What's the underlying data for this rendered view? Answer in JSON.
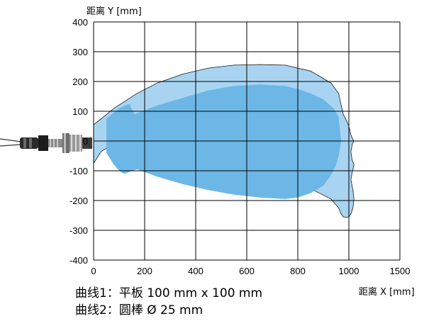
{
  "chart_data": {
    "type": "area",
    "title": "",
    "ylabel": "距离 Y [mm]",
    "xlabel": "距离 X [mm]",
    "x_ticks": [
      "0",
      "200",
      "400",
      "600",
      "800",
      "1000",
      "1500"
    ],
    "y_ticks": [
      "400",
      "300",
      "200",
      "100",
      "0",
      "-100",
      "-200",
      "-300",
      "-400"
    ],
    "grid": true,
    "colors": {
      "outer_zone": "#a9d4f1",
      "inner_zone": "#6cb7e6",
      "grid": "#000000",
      "outline": "#1a1a1a"
    },
    "series": [
      {
        "name": "曲线1：平板 100 mm x 100 mm",
        "zone": "outer_zone",
        "x": [
          0,
          0,
          30,
          80,
          170,
          250,
          350,
          450,
          550,
          650,
          750,
          850,
          930,
          960,
          970,
          978,
          990,
          1000,
          1020,
          1040,
          1050,
          1035,
          1020,
          1030,
          1050,
          1030,
          1020,
          1040,
          1050,
          1040,
          1020,
          1000,
          990,
          978,
          970,
          960,
          930,
          850,
          750,
          650,
          550,
          450,
          350,
          250,
          170,
          80,
          30,
          0
        ],
        "y": [
          -75,
          55,
          75,
          110,
          160,
          195,
          225,
          245,
          255,
          257,
          255,
          235,
          195,
          160,
          120,
          90,
          70,
          50,
          20,
          5,
          0,
          -10,
          -35,
          -60,
          -80,
          -110,
          -130,
          -165,
          -195,
          -225,
          -245,
          -255,
          -257,
          -255,
          -245,
          -225,
          -195,
          -160,
          -120,
          -90,
          -70,
          -50,
          -20,
          -5,
          0,
          -10,
          -35,
          -75
        ]
      },
      {
        "name": "曲线2：圆棒 Ø 25 mm",
        "zone": "inner_zone",
        "x": [
          50,
          50,
          100,
          140,
          160,
          250,
          350,
          450,
          550,
          650,
          750,
          800,
          850,
          900,
          940,
          960,
          970,
          960,
          950,
          930,
          900,
          850,
          800,
          750,
          650,
          550,
          450,
          350,
          250,
          170,
          120,
          100,
          80,
          50
        ],
        "y": [
          -40,
          75,
          110,
          125,
          90,
          120,
          145,
          170,
          185,
          190,
          185,
          175,
          160,
          140,
          110,
          80,
          0,
          -50,
          -80,
          -115,
          -150,
          -175,
          -190,
          -195,
          -190,
          -180,
          -165,
          -145,
          -120,
          -95,
          -110,
          -100,
          -80,
          -40
        ]
      }
    ],
    "xlim": [
      0,
      1500
    ],
    "ylim": [
      -400,
      400
    ]
  },
  "legend": {
    "line1": "曲线1：平板 100 mm x 100 mm",
    "line2": "曲线2：圆棒 Ø 25 mm"
  }
}
